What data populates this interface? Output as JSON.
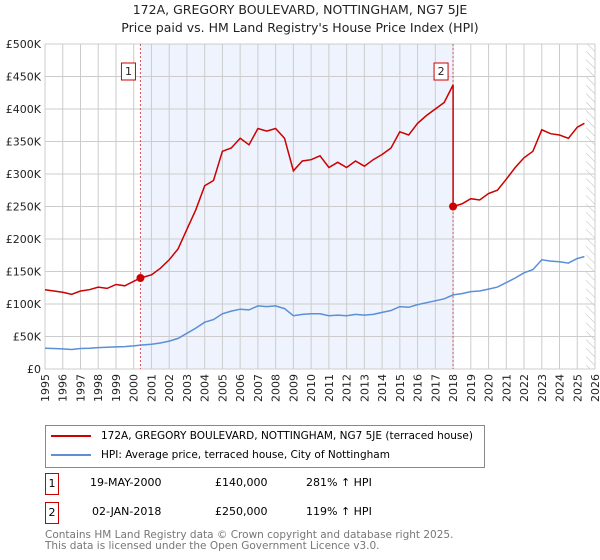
{
  "title": "172A, GREGORY BOULEVARD, NOTTINGHAM, NG7 5JE",
  "subtitle": "Price paid vs. HM Land Registry's House Price Index (HPI)",
  "chart_data": {
    "type": "line",
    "title": "172A, GREGORY BOULEVARD, NOTTINGHAM, NG7 5JE",
    "subtitle": "Price paid vs. HM Land Registry's House Price Index (HPI)",
    "xlim": [
      1995,
      2026
    ],
    "ylim": [
      0,
      500000
    ],
    "x_ticks": [
      "1995",
      "1996",
      "1997",
      "1998",
      "1999",
      "2000",
      "2001",
      "2002",
      "2003",
      "2004",
      "2005",
      "2006",
      "2007",
      "2008",
      "2009",
      "2010",
      "2011",
      "2012",
      "2013",
      "2014",
      "2015",
      "2016",
      "2017",
      "2018",
      "2019",
      "2020",
      "2021",
      "2022",
      "2023",
      "2024",
      "2025",
      "2026"
    ],
    "y_ticks": [
      {
        "v": 0,
        "label": "£0"
      },
      {
        "v": 50000,
        "label": "£50K"
      },
      {
        "v": 100000,
        "label": "£100K"
      },
      {
        "v": 150000,
        "label": "£150K"
      },
      {
        "v": 200000,
        "label": "£200K"
      },
      {
        "v": 250000,
        "label": "£250K"
      },
      {
        "v": 300000,
        "label": "£300K"
      },
      {
        "v": 350000,
        "label": "£350K"
      },
      {
        "v": 400000,
        "label": "£400K"
      },
      {
        "v": 450000,
        "label": "£450K"
      },
      {
        "v": 500000,
        "label": "£500K"
      }
    ],
    "grid": true,
    "shaded_range": [
      2000.38,
      2018.0
    ],
    "hatched_from": 2025.5,
    "series": [
      {
        "name": "172A, GREGORY BOULEVARD, NOTTINGHAM, NG7 5JE (terraced house)",
        "color": "#cc0000",
        "x": [
          1995,
          1995.5,
          1996,
          1996.5,
          1997,
          1997.5,
          1998,
          1998.5,
          1999,
          1999.5,
          2000,
          2000.38,
          2001,
          2001.5,
          2002,
          2002.5,
          2003,
          2003.5,
          2004,
          2004.5,
          2005,
          2005.5,
          2006,
          2006.5,
          2007,
          2007.5,
          2008,
          2008.5,
          2009,
          2009.5,
          2010,
          2010.5,
          2011,
          2011.5,
          2012,
          2012.5,
          2013,
          2013.5,
          2014,
          2014.5,
          2015,
          2015.5,
          2016,
          2016.5,
          2017,
          2017.5,
          2018,
          2018,
          2018.5,
          2019,
          2019.5,
          2020,
          2020.5,
          2021,
          2021.5,
          2022,
          2022.5,
          2023,
          2023.5,
          2024,
          2024.5,
          2025,
          2025.4
        ],
        "y": [
          122000,
          120000,
          118000,
          115000,
          120000,
          122000,
          126000,
          124000,
          130000,
          128000,
          135000,
          140000,
          145000,
          155000,
          168000,
          185000,
          215000,
          245000,
          282000,
          290000,
          335000,
          340000,
          355000,
          345000,
          370000,
          366000,
          370000,
          355000,
          305000,
          320000,
          322000,
          328000,
          310000,
          318000,
          310000,
          320000,
          312000,
          322000,
          330000,
          340000,
          365000,
          360000,
          378000,
          390000,
          400000,
          410000,
          437000,
          250000,
          254000,
          262000,
          260000,
          270000,
          275000,
          292000,
          310000,
          325000,
          335000,
          368000,
          362000,
          360000,
          355000,
          372000,
          378000
        ]
      },
      {
        "name": "HPI: Average price, terraced house, City of Nottingham",
        "color": "#5b8fd6",
        "x": [
          1995,
          1995.5,
          1996,
          1996.5,
          1997,
          1997.5,
          1998,
          1998.5,
          1999,
          1999.5,
          2000,
          2000.38,
          2001,
          2001.5,
          2002,
          2002.5,
          2003,
          2003.5,
          2004,
          2004.5,
          2005,
          2005.5,
          2006,
          2006.5,
          2007,
          2007.5,
          2008,
          2008.5,
          2009,
          2009.5,
          2010,
          2010.5,
          2011,
          2011.5,
          2012,
          2012.5,
          2013,
          2013.5,
          2014,
          2014.5,
          2015,
          2015.5,
          2016,
          2016.5,
          2017,
          2017.5,
          2018,
          2018.5,
          2019,
          2019.5,
          2020,
          2020.5,
          2021,
          2021.5,
          2022,
          2022.5,
          2023,
          2023.5,
          2024,
          2024.5,
          2025,
          2025.4
        ],
        "y": [
          32000,
          31500,
          31000,
          30000,
          31500,
          32000,
          33000,
          33500,
          34000,
          34500,
          35500,
          36700,
          38000,
          40000,
          43000,
          47000,
          55000,
          63000,
          72000,
          76000,
          85000,
          89000,
          92000,
          91000,
          97000,
          96000,
          97000,
          93000,
          82000,
          84000,
          85000,
          85000,
          82000,
          83000,
          82000,
          84000,
          83000,
          84000,
          87000,
          90000,
          96000,
          95000,
          99000,
          102000,
          105000,
          108000,
          114000,
          116000,
          119000,
          120000,
          123000,
          126000,
          133000,
          140000,
          148000,
          153000,
          168000,
          166000,
          165000,
          163000,
          170000,
          173000
        ]
      }
    ],
    "sales": [
      {
        "label": "1",
        "x": 2000.38,
        "y": 140000
      },
      {
        "label": "2",
        "x": 2018.0,
        "y": 250000
      }
    ],
    "legend_position": "below"
  },
  "legend": [
    {
      "label": "172A, GREGORY BOULEVARD, NOTTINGHAM, NG7 5JE (terraced house)",
      "color": "#cc0000"
    },
    {
      "label": "HPI: Average price, terraced house, City of Nottingham",
      "color": "#5b8fd6"
    }
  ],
  "transactions": [
    {
      "num": "1",
      "date": "19-MAY-2000",
      "price": "£140,000",
      "hpi": "281% ↑ HPI"
    },
    {
      "num": "2",
      "date": "02-JAN-2018",
      "price": "£250,000",
      "hpi": "119% ↑ HPI"
    }
  ],
  "footer": {
    "line1": "Contains HM Land Registry data © Crown copyright and database right 2025.",
    "line2": "This data is licensed under the Open Government Licence v3.0."
  }
}
